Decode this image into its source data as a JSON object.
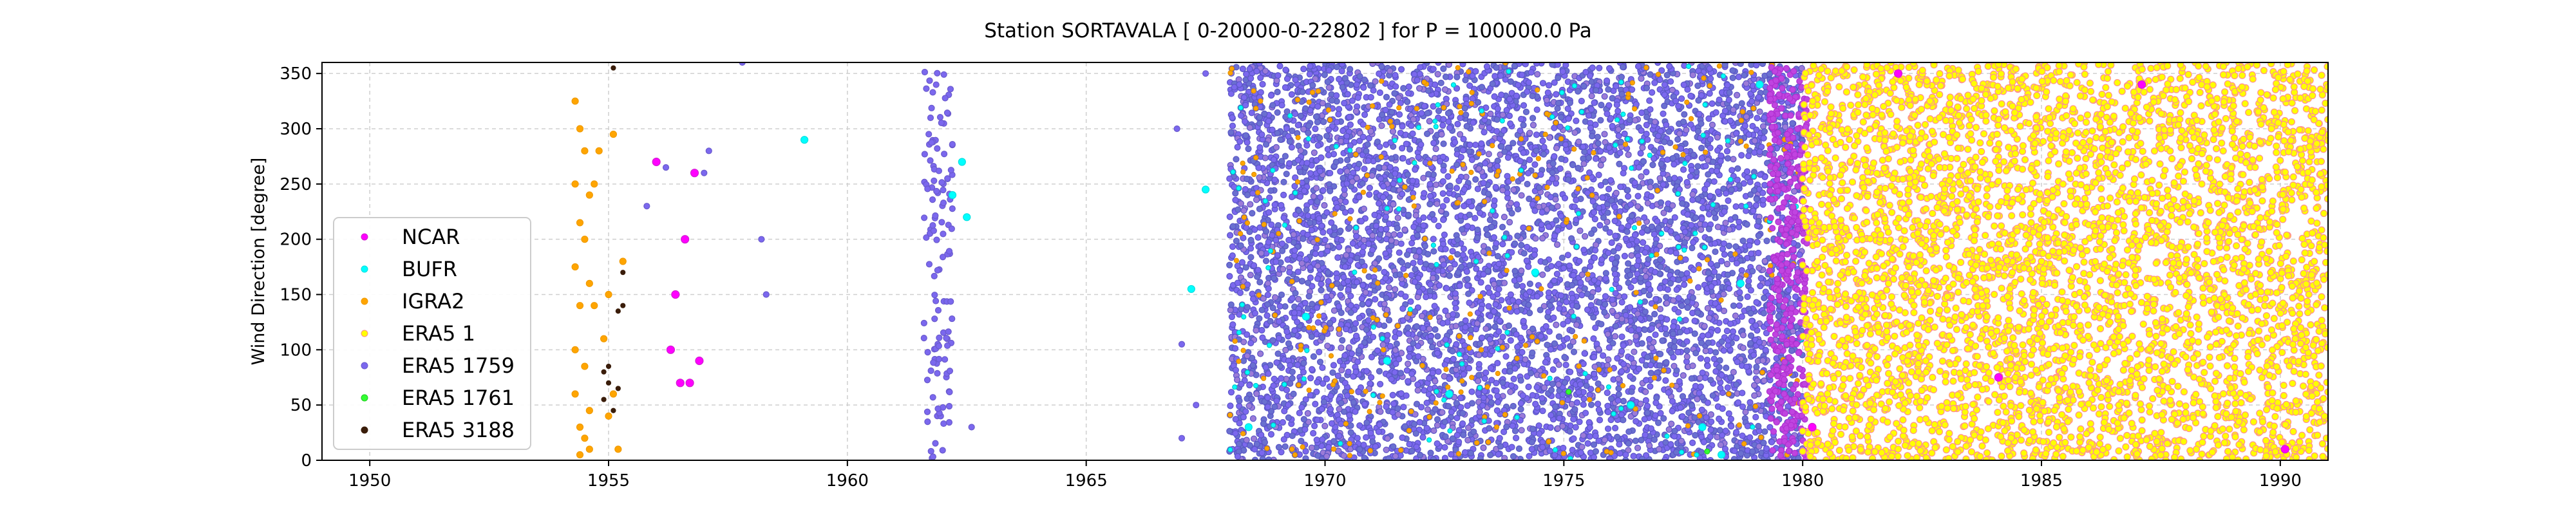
{
  "chart_data": {
    "type": "scatter",
    "title": "Station  SORTAVALA [ 0-20000-0-22802 ]  for P = 100000.0 Pa",
    "xlabel": "",
    "ylabel": "Wind Direction [degree]",
    "xlim": [
      1949,
      1991
    ],
    "ylim": [
      0,
      360
    ],
    "xticks": [
      1950,
      1955,
      1960,
      1965,
      1970,
      1975,
      1980,
      1985,
      1990
    ],
    "yticks": [
      0,
      50,
      100,
      150,
      200,
      250,
      300,
      350
    ],
    "grid": true,
    "legend_position": "center-left",
    "series": [
      {
        "name": "NCAR",
        "color": "#ff00ff",
        "edge": "#d01fd0",
        "values": [
          [
            1956.0,
            270
          ],
          [
            1956.6,
            200
          ],
          [
            1956.4,
            150
          ],
          [
            1956.3,
            100
          ],
          [
            1956.5,
            70
          ],
          [
            1956.7,
            70
          ],
          [
            1956.9,
            90
          ],
          [
            1956.8,
            260
          ],
          [
            1980.2,
            30
          ],
          [
            1982.0,
            350
          ],
          [
            1984.1,
            75
          ],
          [
            1987.1,
            340
          ],
          [
            1990.1,
            10
          ]
        ]
      },
      {
        "name": "BUFR",
        "color": "#00ffff",
        "edge": "#00e0e0",
        "values": [
          [
            1959.1,
            290
          ],
          [
            1962.4,
            270
          ],
          [
            1962.5,
            220
          ],
          [
            1962.2,
            240
          ],
          [
            1967.2,
            155
          ],
          [
            1967.5,
            245
          ],
          [
            1968.4,
            30
          ],
          [
            1969.6,
            130
          ],
          [
            1971.3,
            90
          ],
          [
            1972.6,
            60
          ],
          [
            1974.4,
            170
          ],
          [
            1976.4,
            50
          ],
          [
            1977.9,
            30
          ],
          [
            1978.3,
            5
          ],
          [
            1978.7,
            160
          ],
          [
            1979.1,
            340
          ]
        ]
      },
      {
        "name": "IGRA2",
        "color": "#ffa500",
        "edge": "#f09a00",
        "values": [
          [
            1954.3,
            325
          ],
          [
            1954.4,
            300
          ],
          [
            1954.5,
            280
          ],
          [
            1954.3,
            250
          ],
          [
            1954.6,
            240
          ],
          [
            1954.4,
            215
          ],
          [
            1954.5,
            200
          ],
          [
            1954.3,
            175
          ],
          [
            1954.6,
            160
          ],
          [
            1954.4,
            140
          ],
          [
            1954.3,
            100
          ],
          [
            1954.5,
            85
          ],
          [
            1954.3,
            60
          ],
          [
            1954.6,
            45
          ],
          [
            1954.4,
            30
          ],
          [
            1954.5,
            20
          ],
          [
            1954.6,
            10
          ],
          [
            1954.4,
            5
          ],
          [
            1954.7,
            250
          ],
          [
            1954.8,
            280
          ],
          [
            1954.7,
            140
          ],
          [
            1955.0,
            150
          ],
          [
            1955.1,
            295
          ],
          [
            1955.2,
            10
          ],
          [
            1955.3,
            180
          ],
          [
            1955.1,
            60
          ],
          [
            1954.9,
            110
          ],
          [
            1955.0,
            40
          ]
        ]
      },
      {
        "name": "ERA5 1",
        "color": "#ffff00",
        "edge": "#ff8c8c",
        "values": [
          [
            1985.0,
            180
          ],
          [
            1989.8,
            170
          ],
          [
            1983.0,
            190
          ]
        ]
      },
      {
        "name": "ERA5 1759",
        "color": "#7b68ee",
        "edge": "#6a5acd",
        "values": [
          [
            1955.8,
            230
          ],
          [
            1956.2,
            265
          ],
          [
            1957.1,
            280
          ],
          [
            1957.0,
            260
          ],
          [
            1958.2,
            200
          ],
          [
            1958.3,
            150
          ],
          [
            1957.8,
            360
          ],
          [
            1962.6,
            30
          ],
          [
            1966.9,
            300
          ],
          [
            1967.0,
            105
          ],
          [
            1967.0,
            20
          ],
          [
            1967.3,
            50
          ],
          [
            1967.5,
            350
          ]
        ]
      },
      {
        "name": "ERA5 1761",
        "color": "#33ff33",
        "edge": "#22cc22",
        "values": [
          [
            1975.1,
            62
          ],
          [
            1978.0,
            8
          ]
        ]
      },
      {
        "name": "ERA5 3188",
        "color": "#3a1d0a",
        "edge": "#3a1d0a",
        "values": [
          [
            1954.9,
            80
          ],
          [
            1955.0,
            70
          ],
          [
            1954.9,
            55
          ],
          [
            1955.1,
            45
          ],
          [
            1955.2,
            65
          ],
          [
            1955.3,
            140
          ],
          [
            1955.2,
            135
          ],
          [
            1955.1,
            355
          ],
          [
            1955.3,
            170
          ],
          [
            1955.0,
            85
          ]
        ]
      }
    ],
    "colors": {
      "ncar": "#ff00ff",
      "bufr": "#00ffff",
      "igra2": "#ffa500",
      "era5_1": "#ffff00",
      "era5_1759": "#7b68ee",
      "era5_1761": "#33ff33",
      "era5_3188": "#3a1d0a",
      "grid": "#cfcfcf"
    }
  }
}
